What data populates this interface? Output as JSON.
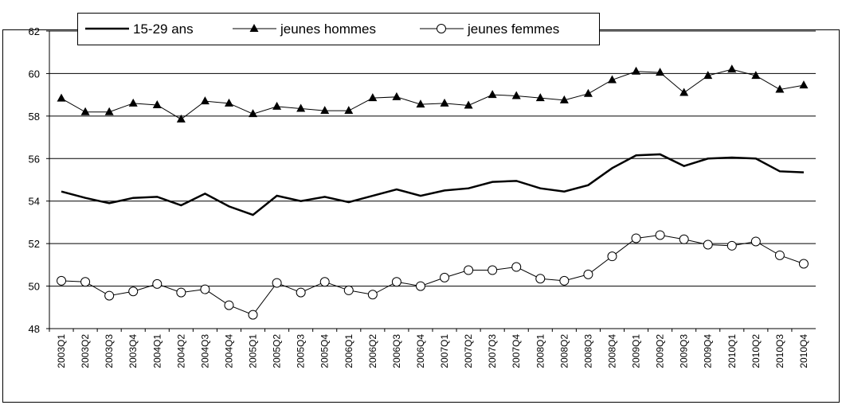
{
  "chart_data": {
    "type": "line",
    "categories": [
      "2003Q1",
      "2003Q2",
      "2003Q3",
      "2003Q4",
      "2004Q1",
      "2004Q2",
      "2004Q3",
      "2004Q4",
      "2005Q1",
      "2005Q2",
      "2005Q3",
      "2005Q4",
      "2006Q1",
      "2006Q2",
      "2006Q3",
      "2006Q4",
      "2007Q1",
      "2007Q2",
      "2007Q3",
      "2007Q4",
      "2008Q1",
      "2008Q2",
      "2008Q3",
      "2008Q4",
      "2009Q1",
      "2009Q2",
      "2009Q3",
      "2009Q4",
      "2010Q1",
      "2010Q2",
      "2010Q3",
      "2010Q4"
    ],
    "series": [
      {
        "name": "15-29 ans",
        "color": "#000000",
        "marker": "none",
        "values": [
          54.45,
          54.15,
          53.9,
          54.15,
          54.2,
          53.8,
          54.35,
          53.75,
          53.35,
          54.25,
          54.0,
          54.2,
          53.95,
          54.25,
          54.55,
          54.25,
          54.5,
          54.6,
          54.9,
          54.95,
          54.6,
          54.45,
          54.75,
          55.55,
          56.15,
          56.2,
          55.65,
          56.0,
          56.05,
          56.0,
          55.4,
          55.35
        ]
      },
      {
        "name": "jeunes hommes",
        "color": "#000000",
        "marker": "triangle",
        "values": [
          58.83,
          58.19,
          58.19,
          58.6,
          58.52,
          57.85,
          58.7,
          58.6,
          58.1,
          58.45,
          58.35,
          58.25,
          58.25,
          58.85,
          58.9,
          58.55,
          58.6,
          58.5,
          59.0,
          58.95,
          58.85,
          58.75,
          59.05,
          59.7,
          60.1,
          60.05,
          59.1,
          59.9,
          60.2,
          59.9,
          59.25,
          59.45
        ]
      },
      {
        "name": "jeunes femmes",
        "color": "#000000",
        "marker": "circle",
        "values": [
          50.25,
          50.2,
          49.55,
          49.75,
          50.1,
          49.7,
          49.85,
          49.1,
          48.65,
          50.15,
          49.7,
          50.2,
          49.8,
          49.6,
          50.2,
          50.0,
          50.4,
          50.75,
          50.75,
          50.9,
          50.35,
          50.25,
          50.55,
          51.4,
          52.25,
          52.4,
          52.2,
          51.95,
          51.9,
          52.1,
          51.45,
          51.05
        ]
      }
    ],
    "ylim": [
      48,
      62
    ],
    "yticks": [
      48,
      50,
      52,
      54,
      56,
      58,
      60,
      62
    ],
    "grid": true,
    "legend": "top-left"
  }
}
